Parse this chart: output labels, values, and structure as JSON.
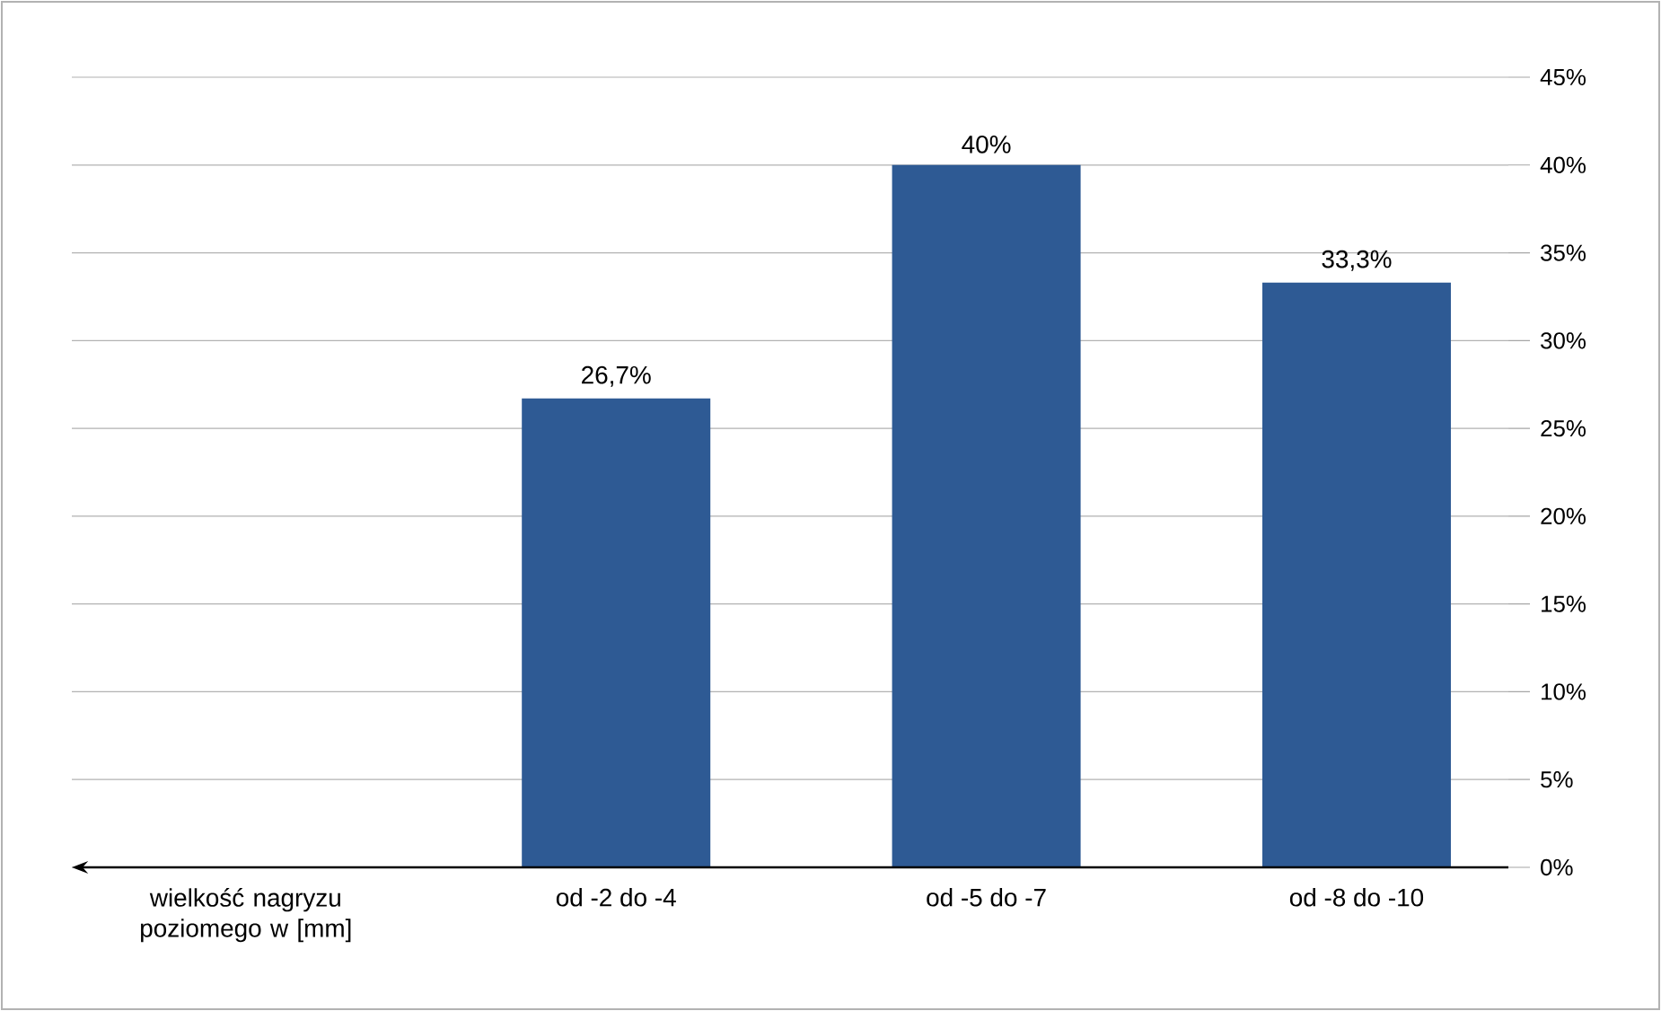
{
  "chart_data": {
    "type": "bar",
    "xlabel": "wielkość nagryzu poziomego w [mm]",
    "categories": [
      "od -2 do -4",
      "od -5 do -7",
      "od -8 do -10"
    ],
    "values": [
      26.7,
      40,
      33.3
    ],
    "value_labels": [
      "26,7%",
      "40%",
      "33,3%"
    ],
    "color": "#2e5a94",
    "ylim": [
      0,
      45
    ],
    "yticks": [
      {
        "value": 0,
        "label": "0%"
      },
      {
        "value": 5,
        "label": "5%"
      },
      {
        "value": 10,
        "label": "10%"
      },
      {
        "value": 15,
        "label": "15%"
      },
      {
        "value": 20,
        "label": "20%"
      },
      {
        "value": 25,
        "label": "25%"
      },
      {
        "value": 30,
        "label": "30%"
      },
      {
        "value": 35,
        "label": "35%"
      },
      {
        "value": 40,
        "label": "40%"
      },
      {
        "value": 45,
        "label": "45%"
      }
    ],
    "grid": "y"
  }
}
